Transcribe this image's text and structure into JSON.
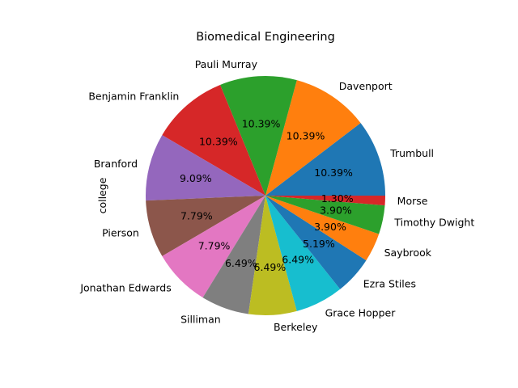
{
  "chart_data": {
    "type": "pie",
    "title": "Biomedical Engineering",
    "ylabel": "college",
    "start_angle_deg": 0,
    "direction": "counterclockwise",
    "slices": [
      {
        "label": "Trumbull",
        "value": 10.39,
        "pct_label": "10.39%",
        "color": "#1f77b4"
      },
      {
        "label": "Davenport",
        "value": 10.39,
        "pct_label": "10.39%",
        "color": "#ff7f0e"
      },
      {
        "label": "Pauli Murray",
        "value": 10.39,
        "pct_label": "10.39%",
        "color": "#2ca02c"
      },
      {
        "label": "Benjamin Franklin",
        "value": 10.39,
        "pct_label": "10.39%",
        "color": "#d62728"
      },
      {
        "label": "Branford",
        "value": 9.09,
        "pct_label": "9.09%",
        "color": "#9467bd"
      },
      {
        "label": "Pierson",
        "value": 7.79,
        "pct_label": "7.79%",
        "color": "#8c564b"
      },
      {
        "label": "Jonathan Edwards",
        "value": 7.79,
        "pct_label": "7.79%",
        "color": "#e377c2"
      },
      {
        "label": "Silliman",
        "value": 6.49,
        "pct_label": "6.49%",
        "color": "#7f7f7f"
      },
      {
        "label": "Berkeley",
        "value": 6.49,
        "pct_label": "6.49%",
        "color": "#bcbd22"
      },
      {
        "label": "Grace Hopper",
        "value": 6.49,
        "pct_label": "6.49%",
        "color": "#17becf"
      },
      {
        "label": "Ezra Stiles",
        "value": 5.19,
        "pct_label": "5.19%",
        "color": "#1f77b4"
      },
      {
        "label": "Saybrook",
        "value": 3.9,
        "pct_label": "3.90%",
        "color": "#ff7f0e"
      },
      {
        "label": "Timothy Dwight",
        "value": 3.9,
        "pct_label": "3.90%",
        "color": "#2ca02c"
      },
      {
        "label": "Morse",
        "value": 1.3,
        "pct_label": "1.30%",
        "color": "#d62728"
      }
    ]
  }
}
